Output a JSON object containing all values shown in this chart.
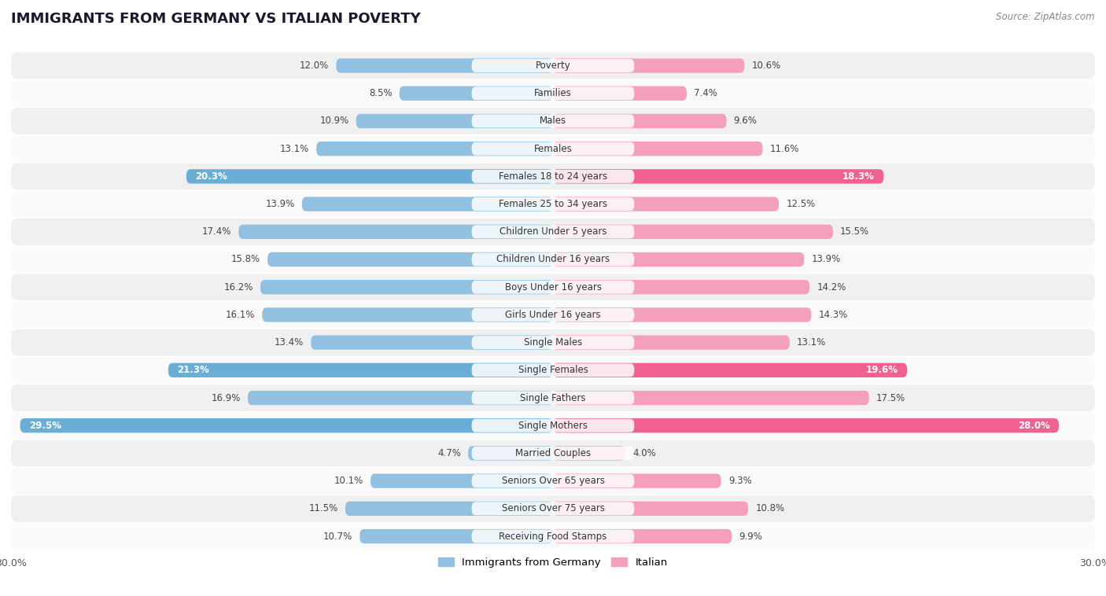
{
  "title": "IMMIGRANTS FROM GERMANY VS ITALIAN POVERTY",
  "source": "Source: ZipAtlas.com",
  "categories": [
    "Poverty",
    "Families",
    "Males",
    "Females",
    "Females 18 to 24 years",
    "Females 25 to 34 years",
    "Children Under 5 years",
    "Children Under 16 years",
    "Boys Under 16 years",
    "Girls Under 16 years",
    "Single Males",
    "Single Females",
    "Single Fathers",
    "Single Mothers",
    "Married Couples",
    "Seniors Over 65 years",
    "Seniors Over 75 years",
    "Receiving Food Stamps"
  ],
  "germany_values": [
    12.0,
    8.5,
    10.9,
    13.1,
    20.3,
    13.9,
    17.4,
    15.8,
    16.2,
    16.1,
    13.4,
    21.3,
    16.9,
    29.5,
    4.7,
    10.1,
    11.5,
    10.7
  ],
  "italian_values": [
    10.6,
    7.4,
    9.6,
    11.6,
    18.3,
    12.5,
    15.5,
    13.9,
    14.2,
    14.3,
    13.1,
    19.6,
    17.5,
    28.0,
    4.0,
    9.3,
    10.8,
    9.9
  ],
  "germany_color": "#92c0e0",
  "italian_color": "#f4a0bb",
  "germany_highlight_color": "#6aaed6",
  "italian_highlight_color": "#f06090",
  "highlight_rows": [
    4,
    11,
    13
  ],
  "axis_max": 30.0,
  "bar_height": 0.52,
  "background_color": "#ffffff",
  "row_bg_even": "#f0f0f0",
  "row_bg_odd": "#fafafa",
  "legend_germany": "Immigrants from Germany",
  "legend_italian": "Italian"
}
